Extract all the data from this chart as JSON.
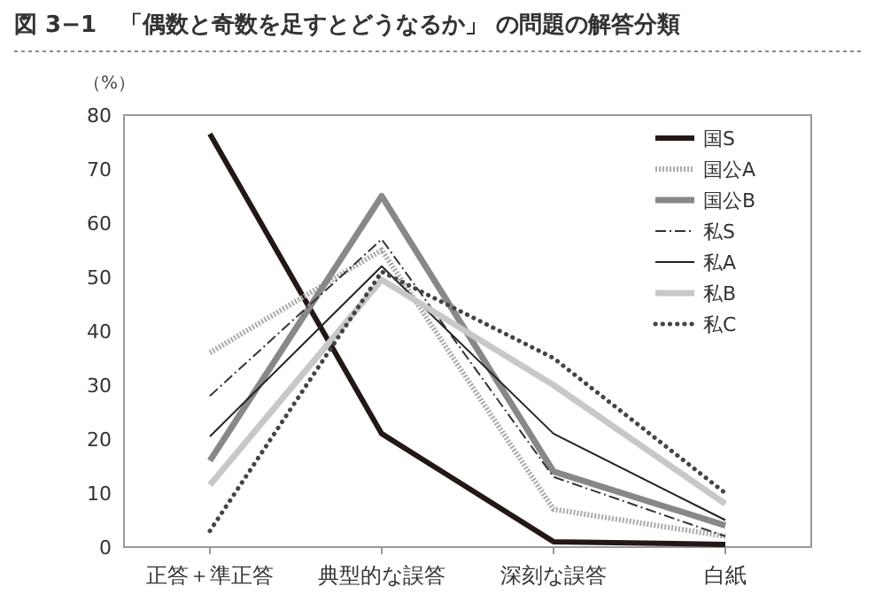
{
  "chart_data": {
    "type": "line",
    "title": "図 3−1　「偶数と奇数を足すとどうなるか」 の問題の解答分類",
    "ylabel": "（%）",
    "categories": [
      "正答＋準正答",
      "典型的な誤答",
      "深刻な誤答",
      "白紙"
    ],
    "ylim": [
      0,
      80
    ],
    "yticks": [
      0,
      10,
      20,
      30,
      40,
      50,
      60,
      70,
      80
    ],
    "grid": false,
    "legend": "top right",
    "series": [
      {
        "name": "国S",
        "color": "#231815",
        "line_style": "solid",
        "values": [
          76.5,
          21,
          1,
          0.5
        ]
      },
      {
        "name": "国公A",
        "color": "#aaaaaa",
        "line_style": "dotted",
        "values": [
          36,
          55,
          7,
          2
        ]
      },
      {
        "name": "国公B",
        "color": "#888888",
        "line_style": "solid",
        "values": [
          16,
          65,
          14,
          4
        ]
      },
      {
        "name": "私S",
        "color": "#333333",
        "line_style": "dashdot",
        "values": [
          28,
          57,
          13,
          2
        ]
      },
      {
        "name": "私A",
        "color": "#222222",
        "line_style": "solid",
        "values": [
          20.5,
          52,
          21,
          5
        ]
      },
      {
        "name": "私B",
        "color": "#c8c8c8",
        "line_style": "solid",
        "values": [
          11.5,
          49.5,
          30,
          8
        ]
      },
      {
        "name": "私C",
        "color": "#444444",
        "line_style": "dotted",
        "values": [
          3,
          51,
          35,
          10
        ]
      }
    ]
  }
}
